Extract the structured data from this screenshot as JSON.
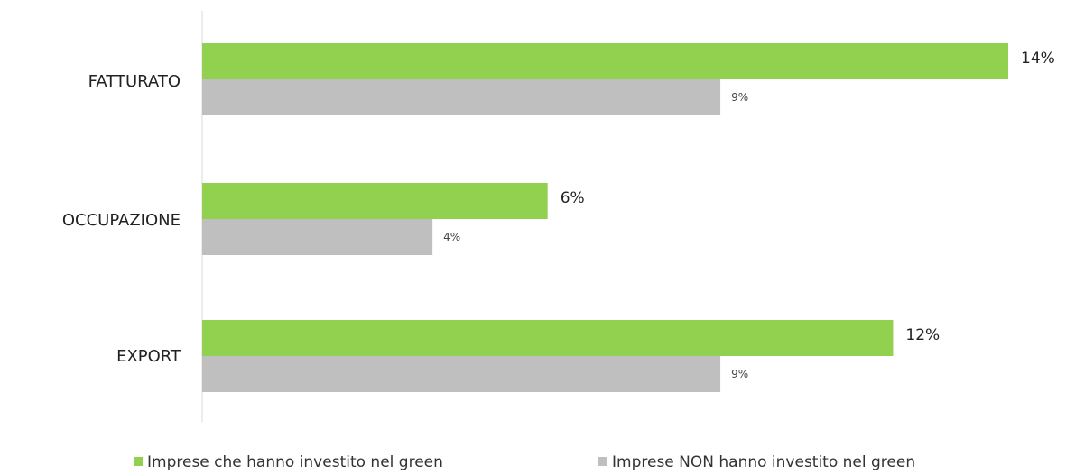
{
  "chart_data": {
    "type": "bar",
    "orientation": "horizontal",
    "categories": [
      "FATTURATO",
      "OCCUPAZIONE",
      "EXPORT"
    ],
    "series": [
      {
        "name": "Imprese che hanno investito nel green",
        "values": [
          14,
          6,
          12
        ],
        "labels": [
          "14%",
          "6%",
          "12%"
        ],
        "color": "#92D050"
      },
      {
        "name": "Imprese NON hanno investito nel green",
        "values": [
          9,
          4,
          9
        ],
        "labels": [
          "9%",
          "4%",
          "9%"
        ],
        "color": "#BFBFBF"
      }
    ],
    "xlim": [
      0,
      14
    ],
    "grid": false,
    "legend_position": "bottom"
  }
}
